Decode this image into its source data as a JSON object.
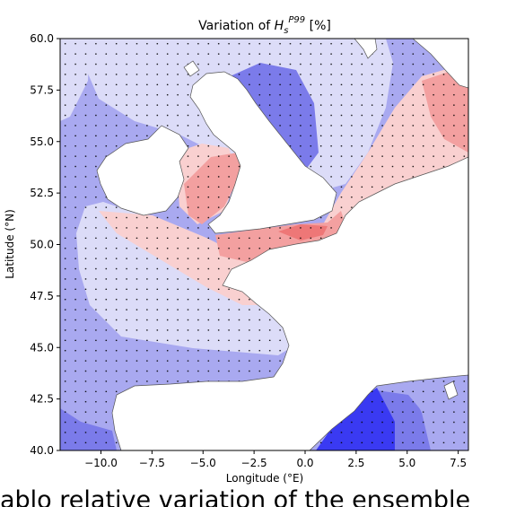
{
  "chart_data": {
    "type": "map",
    "title_prefix": "Variation of ",
    "title_var": "H",
    "title_sub": "s",
    "title_sup": "P99",
    "title_suffix": " [%]",
    "xlabel": "Longitude (°E)",
    "ylabel": "Latitude (°N)",
    "xlim": [
      -12,
      8
    ],
    "ylim": [
      40,
      60
    ],
    "xticks": [
      -10.0,
      -7.5,
      -5.0,
      -2.5,
      0.0,
      2.5,
      5.0,
      7.5
    ],
    "xtick_labels": [
      "−10.0",
      "−7.5",
      "−5.0",
      "−2.5",
      "0.0",
      "2.5",
      "5.0",
      "7.5"
    ],
    "yticks": [
      40.0,
      42.5,
      45.0,
      47.5,
      50.0,
      52.5,
      55.0,
      57.5,
      60.0
    ],
    "ytick_labels": [
      "40.0",
      "42.5",
      "45.0",
      "47.5",
      "50.0",
      "52.5",
      "55.0",
      "57.5",
      "60.0"
    ],
    "colormap": "blue-white-red",
    "colors": {
      "blue_dark": "#3a3af2",
      "blue_mid": "#7b7bea",
      "blue_light": "#a9a9f0",
      "blue_pale": "#dcdcf8",
      "red_pale": "#f9d0d0",
      "red_light": "#f3a0a0",
      "red_mid": "#ee7777",
      "land": "#ffffff",
      "coast": "#555555",
      "stipple": "#000000"
    },
    "stippling": true
  },
  "caption": {
    "text": "ablo relative variation of the ensemble"
  }
}
